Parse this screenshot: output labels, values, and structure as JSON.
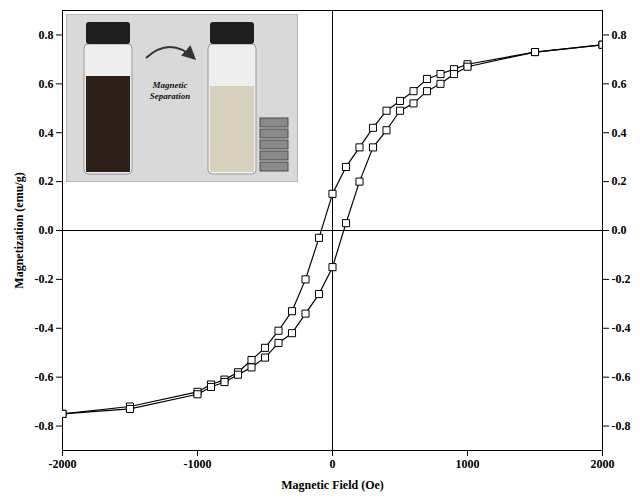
{
  "chart_data": {
    "type": "line",
    "x_label": "Magnetic Field (Oe)",
    "y_label": "Magnetization (emu/g)",
    "annotations": [
      "Magnetic Separation"
    ],
    "x": [
      -2000,
      -1500,
      -1000,
      -900,
      -800,
      -700,
      -600,
      -500,
      -400,
      -300,
      -200,
      -100,
      0,
      100,
      200,
      300,
      400,
      500,
      600,
      700,
      800,
      900,
      1000,
      1500,
      2000
    ],
    "series": [
      {
        "color": "#000000",
        "marker": "square",
        "line_style": "solid",
        "values": [
          -0.75,
          -0.72,
          -0.66,
          -0.63,
          -0.61,
          -0.58,
          -0.53,
          -0.48,
          -0.41,
          -0.33,
          -0.2,
          -0.03,
          0.15,
          0.26,
          0.34,
          0.42,
          0.49,
          0.53,
          0.57,
          0.62,
          0.64,
          0.66,
          0.68,
          0.73,
          0.76
        ]
      },
      {
        "color": "#000000",
        "marker": "square",
        "line_style": "solid",
        "values": [
          -0.75,
          -0.73,
          -0.67,
          -0.64,
          -0.62,
          -0.59,
          -0.56,
          -0.52,
          -0.46,
          -0.42,
          -0.34,
          -0.26,
          -0.15,
          0.03,
          0.2,
          0.34,
          0.41,
          0.49,
          0.52,
          0.57,
          0.6,
          0.64,
          0.67,
          0.73,
          0.76
        ]
      }
    ],
    "xlim": [
      -2000,
      2000
    ],
    "xticks": [
      -2000,
      -1000,
      0,
      1000,
      2000
    ],
    "ylim": [
      -0.9,
      0.9
    ],
    "yticks": [
      -0.8,
      -0.6,
      -0.4,
      -0.2,
      {
        "value": 0,
        "label": "0.0"
      },
      0.2,
      0.4,
      0.6,
      0.8
    ],
    "y2lim": [
      -0.9,
      0.9
    ],
    "y2ticks": [
      -0.8,
      -0.6,
      -0.4,
      -0.2,
      {
        "value": 0,
        "label": "0.0"
      },
      0.2,
      0.4,
      0.6,
      0.8
    ],
    "grid": false
  }
}
